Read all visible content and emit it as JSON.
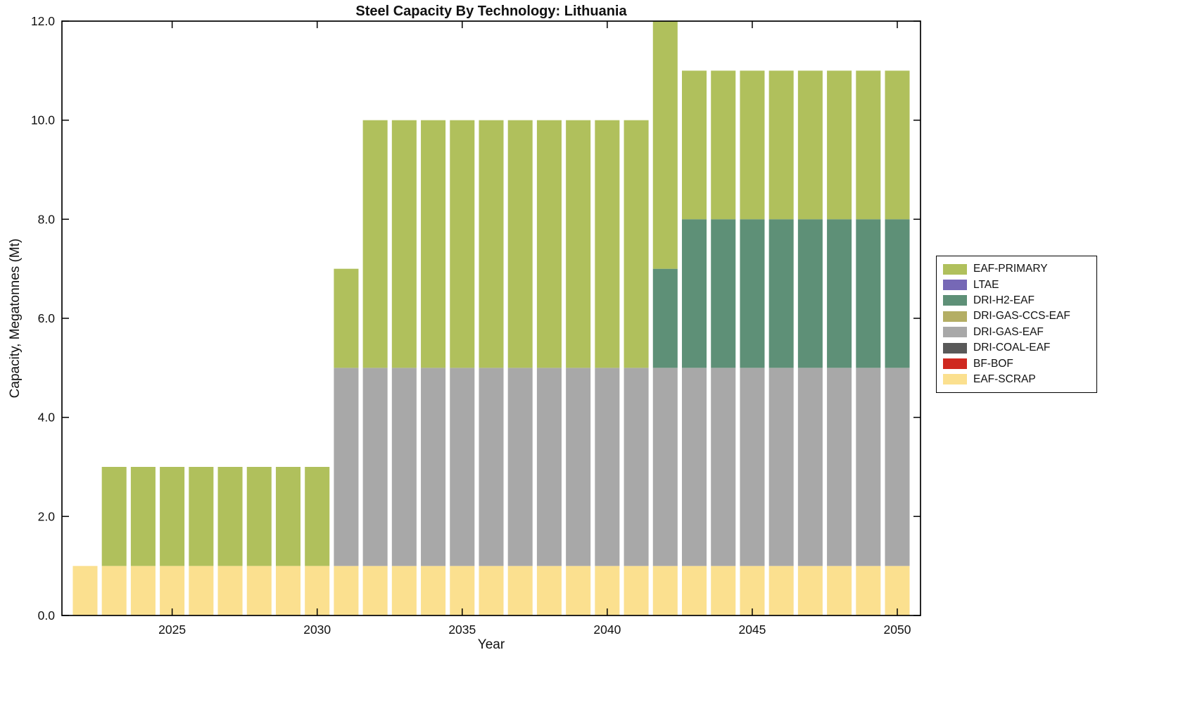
{
  "chart_data": {
    "type": "bar",
    "stacked": true,
    "title": "Steel Capacity By Technology: Lithuania",
    "xlabel": "Year",
    "ylabel": "Capacity, Megatonnes (Mt)",
    "years": [
      2022,
      2023,
      2024,
      2025,
      2026,
      2027,
      2028,
      2029,
      2030,
      2031,
      2032,
      2033,
      2034,
      2035,
      2036,
      2037,
      2038,
      2039,
      2040,
      2041,
      2042,
      2043,
      2044,
      2045,
      2046,
      2047,
      2048,
      2049,
      2050
    ],
    "series": [
      {
        "name": "EAF-SCRAP",
        "color": "#fbe08f",
        "values": [
          1,
          1,
          1,
          1,
          1,
          1,
          1,
          1,
          1,
          1,
          1,
          1,
          1,
          1,
          1,
          1,
          1,
          1,
          1,
          1,
          1,
          1,
          1,
          1,
          1,
          1,
          1,
          1,
          1
        ]
      },
      {
        "name": "BF-BOF",
        "color": "#cf2820",
        "values": [
          0,
          0,
          0,
          0,
          0,
          0,
          0,
          0,
          0,
          0,
          0,
          0,
          0,
          0,
          0,
          0,
          0,
          0,
          0,
          0,
          0,
          0,
          0,
          0,
          0,
          0,
          0,
          0,
          0
        ]
      },
      {
        "name": "DRI-COAL-EAF",
        "color": "#595959",
        "values": [
          0,
          0,
          0,
          0,
          0,
          0,
          0,
          0,
          0,
          0,
          0,
          0,
          0,
          0,
          0,
          0,
          0,
          0,
          0,
          0,
          0,
          0,
          0,
          0,
          0,
          0,
          0,
          0,
          0
        ]
      },
      {
        "name": "DRI-GAS-EAF",
        "color": "#a8a8a8",
        "values": [
          0,
          0,
          0,
          0,
          0,
          0,
          0,
          0,
          0,
          4,
          4,
          4,
          4,
          4,
          4,
          4,
          4,
          4,
          4,
          4,
          4,
          4,
          4,
          4,
          4,
          4,
          4,
          4,
          4
        ]
      },
      {
        "name": "DRI-GAS-CCS-EAF",
        "color": "#b4ae64",
        "values": [
          0,
          0,
          0,
          0,
          0,
          0,
          0,
          0,
          0,
          0,
          0,
          0,
          0,
          0,
          0,
          0,
          0,
          0,
          0,
          0,
          0,
          0,
          0,
          0,
          0,
          0,
          0,
          0,
          0
        ]
      },
      {
        "name": "DRI-H2-EAF",
        "color": "#5e9077",
        "values": [
          0,
          0,
          0,
          0,
          0,
          0,
          0,
          0,
          0,
          0,
          0,
          0,
          0,
          0,
          0,
          0,
          0,
          0,
          0,
          0,
          2,
          3,
          3,
          3,
          3,
          3,
          3,
          3,
          3
        ]
      },
      {
        "name": "LTAE",
        "color": "#7668b6",
        "values": [
          0,
          0,
          0,
          0,
          0,
          0,
          0,
          0,
          0,
          0,
          0,
          0,
          0,
          0,
          0,
          0,
          0,
          0,
          0,
          0,
          0,
          0,
          0,
          0,
          0,
          0,
          0,
          0,
          0
        ]
      },
      {
        "name": "EAF-PRIMARY",
        "color": "#b0c05c",
        "values": [
          0,
          2,
          2,
          2,
          2,
          2,
          2,
          2,
          2,
          2,
          5,
          5,
          5,
          5,
          5,
          5,
          5,
          5,
          5,
          5,
          5,
          3,
          3,
          3,
          3,
          3,
          3,
          3,
          3
        ]
      }
    ],
    "legend": [
      "EAF-PRIMARY",
      "LTAE",
      "DRI-H2-EAF",
      "DRI-GAS-CCS-EAF",
      "DRI-GAS-EAF",
      "DRI-COAL-EAF",
      "BF-BOF",
      "EAF-SCRAP"
    ],
    "legend_position": "right",
    "xlim": [
      2021.2,
      2050.8
    ],
    "ylim": [
      0,
      12
    ],
    "xticks": [
      2025,
      2030,
      2035,
      2040,
      2045,
      2050
    ],
    "yticks": [
      0,
      2,
      4,
      6,
      8,
      10,
      12
    ],
    "ytick_labels": [
      "0.0",
      "2.0",
      "4.0",
      "6.0",
      "8.0",
      "10.0",
      "12.0"
    ],
    "bar_width": 0.85,
    "grid": false
  }
}
